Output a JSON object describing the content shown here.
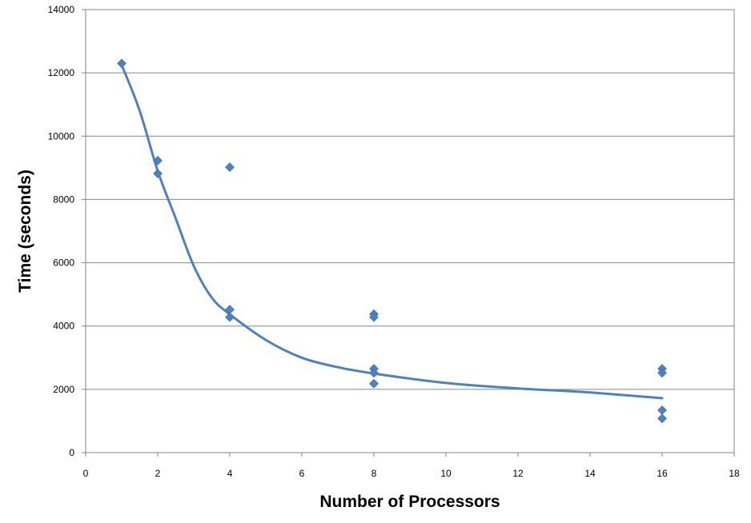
{
  "chart_data": {
    "type": "scatter",
    "title": "",
    "xlabel": "Number of Processors",
    "ylabel": "Time (seconds)",
    "xlim": [
      0,
      18
    ],
    "ylim": [
      0,
      14000
    ],
    "xticks": [
      0,
      2,
      4,
      6,
      8,
      10,
      12,
      14,
      16,
      18
    ],
    "yticks": [
      0,
      2000,
      4000,
      6000,
      8000,
      10000,
      12000,
      14000
    ],
    "grid": "horizontal",
    "legend": "none",
    "marker": "diamond",
    "color": "#4F81BD",
    "points": [
      {
        "x": 1,
        "y": 12300
      },
      {
        "x": 2,
        "y": 9230
      },
      {
        "x": 2,
        "y": 8820
      },
      {
        "x": 4,
        "y": 9020
      },
      {
        "x": 4,
        "y": 4520
      },
      {
        "x": 4,
        "y": 4280
      },
      {
        "x": 8,
        "y": 4380
      },
      {
        "x": 8,
        "y": 4280
      },
      {
        "x": 8,
        "y": 2650
      },
      {
        "x": 8,
        "y": 2520
      },
      {
        "x": 8,
        "y": 2180
      },
      {
        "x": 16,
        "y": 2650
      },
      {
        "x": 16,
        "y": 2520
      },
      {
        "x": 16,
        "y": 1340
      },
      {
        "x": 16,
        "y": 1080
      }
    ],
    "trendline": {
      "type": "smooth",
      "x": [
        1,
        1.5,
        2,
        2.5,
        3,
        3.5,
        4,
        5,
        6,
        7,
        8,
        10,
        12,
        14,
        16
      ],
      "y": [
        12250,
        10800,
        8900,
        7400,
        5900,
        4900,
        4370,
        3560,
        3000,
        2700,
        2500,
        2200,
        2030,
        1900,
        1720
      ]
    }
  }
}
